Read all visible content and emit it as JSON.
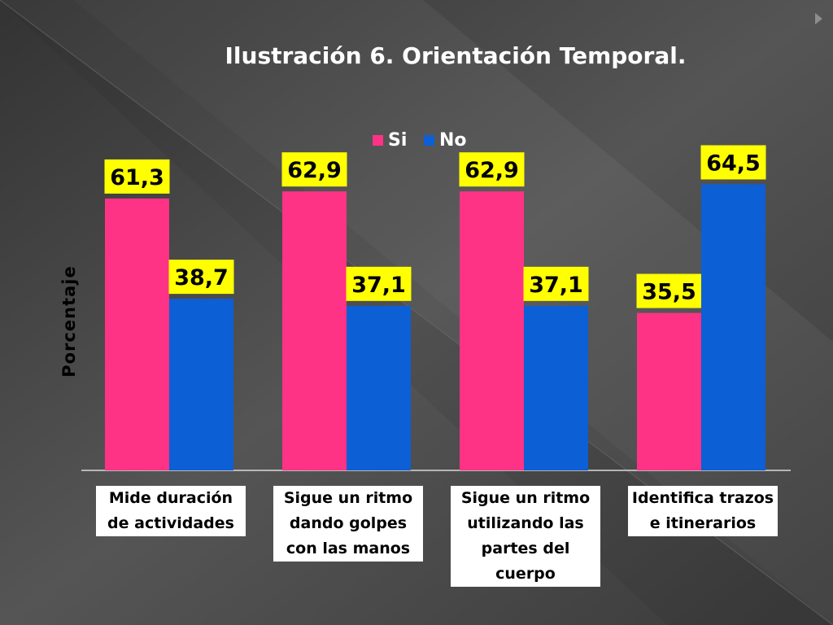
{
  "chart_data": {
    "type": "bar",
    "title": "Ilustración 6. Orientación Temporal.",
    "xlabel": "",
    "ylabel": "Porcentaje",
    "ylim": [
      0,
      70
    ],
    "grid": false,
    "legend_position": "top",
    "categories": [
      "Mide duración de actividades",
      "Sigue un ritmo dando golpes con las manos",
      "Sigue un ritmo utilizando las partes del cuerpo",
      "Identifica trazos e itinerarios"
    ],
    "category_lines": [
      [
        "Mide duración",
        "de actividades"
      ],
      [
        "Sigue un ritmo",
        "dando golpes",
        "con las manos"
      ],
      [
        "Sigue un ritmo",
        "utilizando las",
        "partes del",
        "cuerpo"
      ],
      [
        "Identifica trazos",
        "e itinerarios"
      ]
    ],
    "series": [
      {
        "name": "Si",
        "color": "#ff3385",
        "values": [
          61.3,
          62.9,
          62.9,
          35.5
        ]
      },
      {
        "name": "No",
        "color": "#0d5fd6",
        "values": [
          38.7,
          37.1,
          37.1,
          64.5
        ]
      }
    ],
    "data_labels": [
      [
        "61,3",
        "62,9",
        "62,9",
        "35,5"
      ],
      [
        "38,7",
        "37,1",
        "37,1",
        "64,5"
      ]
    ],
    "data_label_background": "#ffff00"
  }
}
